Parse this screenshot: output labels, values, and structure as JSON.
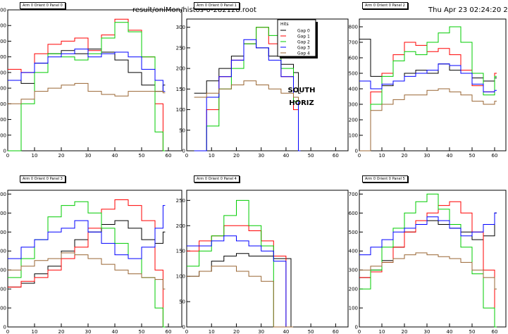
{
  "header": {
    "filename": "result/onlMon/histos-0-282128.root",
    "datetime": "Thu Apr 23 02:24:20 2009"
  },
  "legend": {
    "title": "Hits",
    "entries": [
      "Gap 0",
      "Gap 1",
      "Gap 2",
      "Gap 3",
      "Gap 4"
    ]
  },
  "annotations": [
    "SOUTH",
    "HORIZ"
  ],
  "colors": {
    "Gap 0": "#000000",
    "Gap 1": "#ff0000",
    "Gap 2": "#00cc00",
    "Gap 3": "#0000ff",
    "Gap 4": "#996633"
  },
  "chart_data": [
    {
      "type": "line",
      "title": "Arm 0 Orient 0 Panel 0",
      "xlim": [
        0,
        65
      ],
      "ylim": [
        0,
        900
      ],
      "xticks": [
        0,
        10,
        20,
        30,
        40,
        50,
        60
      ],
      "yticks": [
        0,
        100,
        200,
        300,
        400,
        500,
        600,
        700,
        800,
        900
      ],
      "series": [
        {
          "name": "Gap 0",
          "x": [
            0,
            5,
            10,
            15,
            20,
            25,
            30,
            35,
            40,
            45,
            50,
            55,
            58
          ],
          "y": [
            450,
            430,
            560,
            620,
            640,
            620,
            650,
            630,
            580,
            500,
            420,
            380,
            420
          ]
        },
        {
          "name": "Gap 1",
          "x": [
            0,
            5,
            10,
            15,
            20,
            25,
            30,
            35,
            40,
            45,
            50,
            55,
            58
          ],
          "y": [
            520,
            500,
            620,
            680,
            700,
            720,
            640,
            740,
            840,
            770,
            600,
            300,
            0
          ]
        },
        {
          "name": "Gap 2",
          "x": [
            0,
            5,
            10,
            15,
            20,
            25,
            30,
            35,
            40,
            45,
            50,
            55,
            58
          ],
          "y": [
            0,
            300,
            500,
            620,
            600,
            580,
            620,
            720,
            820,
            760,
            600,
            120,
            0
          ]
        },
        {
          "name": "Gap 3",
          "x": [
            0,
            5,
            10,
            15,
            20,
            25,
            30,
            35,
            40,
            45,
            50,
            55,
            58
          ],
          "y": [
            450,
            500,
            560,
            600,
            620,
            650,
            600,
            620,
            630,
            600,
            520,
            450,
            380
          ]
        },
        {
          "name": "Gap 4",
          "x": [
            0,
            5,
            10,
            15,
            20,
            25,
            30,
            35,
            40,
            45,
            50,
            55,
            58
          ],
          "y": [
            300,
            330,
            380,
            400,
            420,
            430,
            380,
            360,
            350,
            380,
            380,
            380,
            370
          ]
        }
      ]
    },
    {
      "type": "line",
      "title": "Arm 0 Orient 0 Panel 1",
      "xlim": [
        0,
        65
      ],
      "ylim": [
        0,
        320
      ],
      "xticks": [
        0,
        10,
        20,
        30,
        40,
        50,
        60
      ],
      "yticks": [
        0,
        50,
        100,
        150,
        200,
        250,
        300
      ],
      "series": [
        {
          "name": "Gap 0",
          "x": [
            3,
            8,
            13,
            18,
            23,
            28,
            33,
            38,
            43,
            45
          ],
          "y": [
            140,
            170,
            200,
            230,
            260,
            250,
            230,
            210,
            190,
            140
          ]
        },
        {
          "name": "Gap 1",
          "x": [
            3,
            8,
            13,
            18,
            23,
            28,
            33,
            38,
            43,
            45
          ],
          "y": [
            0,
            100,
            180,
            220,
            260,
            300,
            260,
            180,
            100,
            0
          ]
        },
        {
          "name": "Gap 2",
          "x": [
            3,
            8,
            13,
            18,
            23,
            28,
            33,
            38,
            43,
            45
          ],
          "y": [
            0,
            60,
            150,
            200,
            260,
            300,
            280,
            200,
            120,
            0
          ]
        },
        {
          "name": "Gap 3",
          "x": [
            3,
            8,
            13,
            18,
            23,
            28,
            33,
            38,
            43,
            45
          ],
          "y": [
            0,
            130,
            180,
            220,
            270,
            250,
            220,
            180,
            130,
            0
          ]
        },
        {
          "name": "Gap 4",
          "x": [
            3,
            8,
            13,
            18,
            23,
            28,
            33,
            38,
            43,
            45
          ],
          "y": [
            130,
            140,
            150,
            160,
            170,
            160,
            150,
            140,
            130,
            120
          ]
        }
      ]
    },
    {
      "type": "line",
      "title": "Arm 0 Orient 0 Panel 2",
      "xlim": [
        0,
        65
      ],
      "ylim": [
        0,
        850
      ],
      "xticks": [
        0,
        10,
        20,
        30,
        40,
        50,
        60
      ],
      "yticks": [
        0,
        100,
        200,
        300,
        400,
        500,
        600,
        700,
        800
      ],
      "series": [
        {
          "name": "Gap 0",
          "x": [
            0,
            5,
            10,
            15,
            20,
            25,
            30,
            35,
            40,
            45,
            50,
            55,
            60
          ],
          "y": [
            720,
            480,
            420,
            450,
            500,
            520,
            500,
            560,
            520,
            500,
            470,
            450,
            470
          ]
        },
        {
          "name": "Gap 1",
          "x": [
            0,
            5,
            10,
            15,
            20,
            25,
            30,
            35,
            40,
            45,
            50,
            55,
            60
          ],
          "y": [
            0,
            380,
            500,
            620,
            700,
            680,
            640,
            660,
            620,
            520,
            420,
            380,
            500
          ]
        },
        {
          "name": "Gap 2",
          "x": [
            0,
            5,
            10,
            15,
            20,
            25,
            30,
            35,
            40,
            45,
            50,
            55,
            60
          ],
          "y": [
            0,
            300,
            480,
            580,
            640,
            620,
            700,
            760,
            800,
            700,
            500,
            360,
            480
          ]
        },
        {
          "name": "Gap 3",
          "x": [
            0,
            5,
            10,
            15,
            20,
            25,
            30,
            35,
            40,
            45,
            50,
            55,
            60
          ],
          "y": [
            450,
            400,
            430,
            450,
            480,
            500,
            520,
            560,
            550,
            500,
            430,
            380,
            390
          ]
        },
        {
          "name": "Gap 4",
          "x": [
            0,
            5,
            10,
            15,
            20,
            25,
            30,
            35,
            40,
            45,
            50,
            55,
            60
          ],
          "y": [
            0,
            260,
            300,
            330,
            360,
            360,
            390,
            400,
            380,
            360,
            320,
            300,
            320
          ]
        }
      ]
    },
    {
      "type": "line",
      "title": "Arm 0 Orient 0 Panel 3",
      "xlim": [
        0,
        65
      ],
      "ylim": [
        0,
        720
      ],
      "xticks": [
        0,
        10,
        20,
        30,
        40,
        50,
        60
      ],
      "yticks": [
        0,
        100,
        200,
        300,
        400,
        500,
        600,
        700
      ],
      "series": [
        {
          "name": "Gap 0",
          "x": [
            0,
            5,
            10,
            15,
            20,
            25,
            30,
            35,
            40,
            45,
            50,
            55,
            58
          ],
          "y": [
            210,
            230,
            280,
            320,
            400,
            460,
            500,
            540,
            560,
            520,
            460,
            440,
            500
          ]
        },
        {
          "name": "Gap 1",
          "x": [
            0,
            5,
            10,
            15,
            20,
            25,
            30,
            35,
            40,
            45,
            50,
            55,
            58
          ],
          "y": [
            210,
            240,
            260,
            300,
            360,
            420,
            520,
            620,
            670,
            640,
            560,
            300,
            0
          ]
        },
        {
          "name": "Gap 2",
          "x": [
            0,
            5,
            10,
            15,
            20,
            25,
            30,
            35,
            40,
            45,
            50,
            55,
            58
          ],
          "y": [
            260,
            360,
            460,
            580,
            640,
            660,
            600,
            520,
            440,
            360,
            260,
            100,
            0
          ]
        },
        {
          "name": "Gap 3",
          "x": [
            0,
            5,
            10,
            15,
            20,
            25,
            30,
            35,
            40,
            45,
            50,
            55,
            58
          ],
          "y": [
            360,
            420,
            460,
            500,
            520,
            560,
            500,
            440,
            380,
            360,
            420,
            520,
            640
          ]
        },
        {
          "name": "Gap 4",
          "x": [
            0,
            5,
            10,
            15,
            20,
            25,
            30,
            35,
            40,
            45,
            50,
            55,
            58
          ],
          "y": [
            300,
            320,
            350,
            360,
            390,
            380,
            360,
            330,
            300,
            280,
            260,
            250,
            200
          ]
        }
      ]
    },
    {
      "type": "line",
      "title": "Arm 0 Orient 0 Panel 4",
      "xlim": [
        0,
        65
      ],
      "ylim": [
        0,
        270
      ],
      "xticks": [
        0,
        10,
        20,
        30,
        40,
        50,
        60
      ],
      "yticks": [
        0,
        50,
        100,
        150,
        200,
        250
      ],
      "series": [
        {
          "name": "Gap 0",
          "x": [
            0,
            5,
            10,
            15,
            20,
            25,
            30,
            35,
            40,
            42
          ],
          "y": [
            100,
            110,
            130,
            140,
            145,
            140,
            140,
            135,
            135,
            0
          ]
        },
        {
          "name": "Gap 1",
          "x": [
            0,
            5,
            10,
            15,
            20,
            25,
            30,
            35,
            40,
            42
          ],
          "y": [
            150,
            170,
            180,
            200,
            200,
            190,
            170,
            140,
            0,
            0
          ]
        },
        {
          "name": "Gap 2",
          "x": [
            0,
            5,
            10,
            15,
            20,
            25,
            30,
            35,
            40,
            42
          ],
          "y": [
            120,
            150,
            180,
            220,
            250,
            200,
            160,
            0,
            0,
            0
          ]
        },
        {
          "name": "Gap 3",
          "x": [
            0,
            5,
            10,
            15,
            20,
            25,
            30,
            35,
            40,
            42
          ],
          "y": [
            160,
            160,
            170,
            180,
            170,
            160,
            150,
            130,
            0,
            0
          ]
        },
        {
          "name": "Gap 4",
          "x": [
            0,
            5,
            10,
            15,
            20,
            25,
            30,
            35,
            40,
            42
          ],
          "y": [
            100,
            110,
            120,
            120,
            110,
            100,
            90,
            0,
            0,
            0
          ]
        }
      ]
    },
    {
      "type": "line",
      "title": "Arm 0 Orient 0 Panel 5",
      "xlim": [
        0,
        65
      ],
      "ylim": [
        0,
        720
      ],
      "xticks": [
        0,
        10,
        20,
        30,
        40,
        50,
        60
      ],
      "yticks": [
        0,
        100,
        200,
        300,
        400,
        500,
        600,
        700
      ],
      "series": [
        {
          "name": "Gap 0",
          "x": [
            0,
            5,
            10,
            15,
            20,
            25,
            30,
            35,
            40,
            45,
            50,
            55,
            60
          ],
          "y": [
            260,
            300,
            350,
            420,
            500,
            540,
            560,
            540,
            520,
            500,
            460,
            480,
            600
          ]
        },
        {
          "name": "Gap 1",
          "x": [
            0,
            5,
            10,
            15,
            20,
            25,
            30,
            35,
            40,
            45,
            50,
            55,
            60
          ],
          "y": [
            260,
            290,
            340,
            420,
            500,
            560,
            600,
            640,
            660,
            600,
            500,
            300,
            0
          ]
        },
        {
          "name": "Gap 2",
          "x": [
            0,
            5,
            10,
            15,
            20,
            25,
            30,
            35,
            40,
            45,
            50,
            55,
            60
          ],
          "y": [
            200,
            300,
            420,
            520,
            600,
            660,
            700,
            620,
            540,
            420,
            280,
            100,
            0
          ]
        },
        {
          "name": "Gap 3",
          "x": [
            0,
            5,
            10,
            15,
            20,
            25,
            30,
            35,
            40,
            45,
            50,
            55,
            60
          ],
          "y": [
            380,
            420,
            460,
            500,
            520,
            540,
            580,
            560,
            520,
            480,
            500,
            540,
            600
          ]
        },
        {
          "name": "Gap 4",
          "x": [
            0,
            5,
            10,
            15,
            20,
            25,
            30,
            35,
            40,
            45,
            50,
            55,
            60
          ],
          "y": [
            300,
            320,
            340,
            360,
            380,
            390,
            380,
            370,
            360,
            340,
            300,
            260,
            200
          ]
        }
      ]
    }
  ]
}
